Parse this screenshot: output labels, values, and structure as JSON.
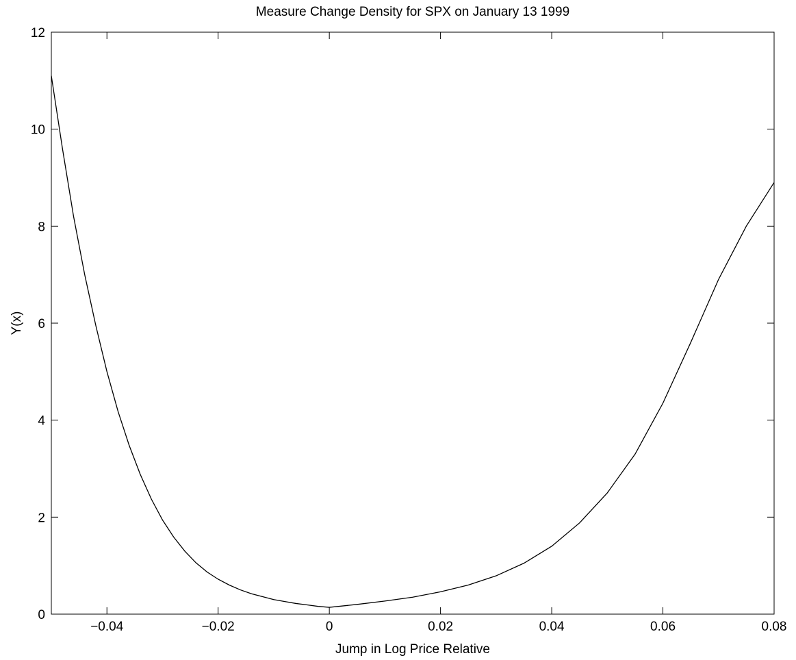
{
  "chart_data": {
    "type": "line",
    "title": "Measure Change Density for SPX on January 13 1999",
    "xlabel": "Jump in Log Price Relative",
    "ylabel": "Y(x)",
    "xlim": [
      -0.05,
      0.08
    ],
    "ylim": [
      0,
      12
    ],
    "xticks": [
      -0.04,
      -0.02,
      0,
      0.02,
      0.04,
      0.06,
      0.08
    ],
    "xtick_labels": [
      "−0.04",
      "−0.02",
      "0",
      "0.02",
      "0.04",
      "0.06",
      "0.08"
    ],
    "yticks": [
      0,
      2,
      4,
      6,
      8,
      10,
      12
    ],
    "ytick_labels": [
      "0",
      "2",
      "4",
      "6",
      "8",
      "10",
      "12"
    ],
    "grid": false,
    "line_color": "#000000",
    "series": [
      {
        "x": [
          -0.05,
          -0.048,
          -0.046,
          -0.044,
          -0.042,
          -0.04,
          -0.038,
          -0.036,
          -0.034,
          -0.032,
          -0.03,
          -0.028,
          -0.026,
          -0.024,
          -0.022,
          -0.02,
          -0.018,
          -0.016,
          -0.014,
          -0.012,
          -0.01,
          -0.008,
          -0.006,
          -0.004,
          -0.002,
          0,
          0.005,
          0.01,
          0.015,
          0.02,
          0.025,
          0.03,
          0.035,
          0.04,
          0.045,
          0.05,
          0.055,
          0.06,
          0.065,
          0.07,
          0.075,
          0.08
        ],
        "values": [
          11.1,
          9.6,
          8.2,
          7.0,
          5.95,
          5.0,
          4.18,
          3.48,
          2.88,
          2.37,
          1.94,
          1.59,
          1.3,
          1.06,
          0.87,
          0.72,
          0.6,
          0.5,
          0.42,
          0.36,
          0.3,
          0.26,
          0.22,
          0.19,
          0.16,
          0.14,
          0.2,
          0.27,
          0.35,
          0.46,
          0.6,
          0.79,
          1.05,
          1.4,
          1.88,
          2.5,
          3.3,
          4.35,
          5.6,
          6.9,
          8.0,
          8.9
        ]
      }
    ]
  }
}
